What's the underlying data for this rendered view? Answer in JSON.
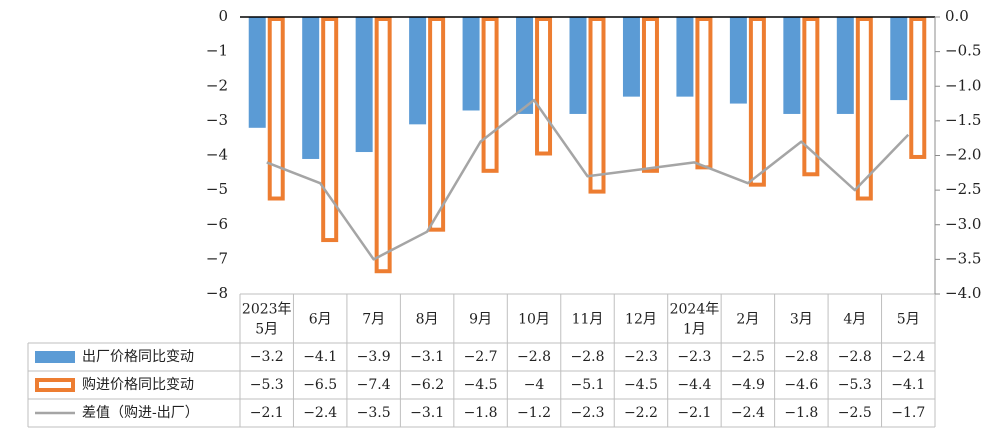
{
  "chart_data": {
    "type": "bar",
    "categories": [
      "2023年5月",
      "6月",
      "7月",
      "8月",
      "9月",
      "10月",
      "11月",
      "12月",
      "2024年1月",
      "2月",
      "3月",
      "4月",
      "5月"
    ],
    "category_lines": [
      [
        "2023年",
        "5月"
      ],
      [
        "6月"
      ],
      [
        "7月"
      ],
      [
        "8月"
      ],
      [
        "9月"
      ],
      [
        "10月"
      ],
      [
        "11月"
      ],
      [
        "12月"
      ],
      [
        "2024年",
        "1月"
      ],
      [
        "2月"
      ],
      [
        "3月"
      ],
      [
        "4月"
      ],
      [
        "5月"
      ]
    ],
    "series": [
      {
        "name": "出厂价格同比变动",
        "kind": "bar",
        "axis": "left",
        "color": "#5b9bd5",
        "values": [
          -3.2,
          -4.1,
          -3.9,
          -3.1,
          -2.7,
          -2.8,
          -2.8,
          -2.3,
          -2.3,
          -2.5,
          -2.8,
          -2.8,
          -2.4
        ],
        "labels": [
          "-3.2",
          "-4.1",
          "-3.9",
          "-3.1",
          "-2.7",
          "-2.8",
          "-2.8",
          "-2.3",
          "-2.3",
          "-2.5",
          "-2.8",
          "-2.8",
          "-2.4"
        ]
      },
      {
        "name": "购进价格同比变动",
        "kind": "bar-outline",
        "axis": "left",
        "color": "#ed7d31",
        "values": [
          -5.3,
          -6.5,
          -7.4,
          -6.2,
          -4.5,
          -4,
          -5.1,
          -4.5,
          -4.4,
          -4.9,
          -4.6,
          -5.3,
          -4.1
        ],
        "labels": [
          "-5.3",
          "-6.5",
          "-7.4",
          "-6.2",
          "-4.5",
          "-4",
          "-5.1",
          "-4.5",
          "-4.4",
          "-4.9",
          "-4.6",
          "-5.3",
          "-4.1"
        ]
      },
      {
        "name": "差值（购进-出厂）",
        "kind": "line",
        "axis": "right",
        "color": "#a5a5a5",
        "values": [
          -2.1,
          -2.4,
          -3.5,
          -3.1,
          -1.8,
          -1.2,
          -2.3,
          -2.2,
          -2.1,
          -2.4,
          -1.8,
          -2.5,
          -1.7
        ],
        "labels": [
          "-2.1",
          "-2.4",
          "-3.5",
          "-3.1",
          "-1.8",
          "-1.2",
          "-2.3",
          "-2.2",
          "-2.1",
          "-2.4",
          "-1.8",
          "-2.5",
          "-1.7"
        ]
      }
    ],
    "y_left": {
      "min": -8,
      "max": 0,
      "ticks": [
        "0",
        "-1",
        "-2",
        "-3",
        "-4",
        "-5",
        "-6",
        "-7",
        "-8"
      ]
    },
    "y_right": {
      "min": -4,
      "max": 0,
      "ticks": [
        "0.0",
        "-0.5",
        "-1.0",
        "-1.5",
        "-2.0",
        "-2.5",
        "-3.0",
        "-3.5",
        "-4.0"
      ]
    },
    "title": "",
    "xlabel": "",
    "ylabel": "",
    "grid": false,
    "legend": "data-table"
  }
}
